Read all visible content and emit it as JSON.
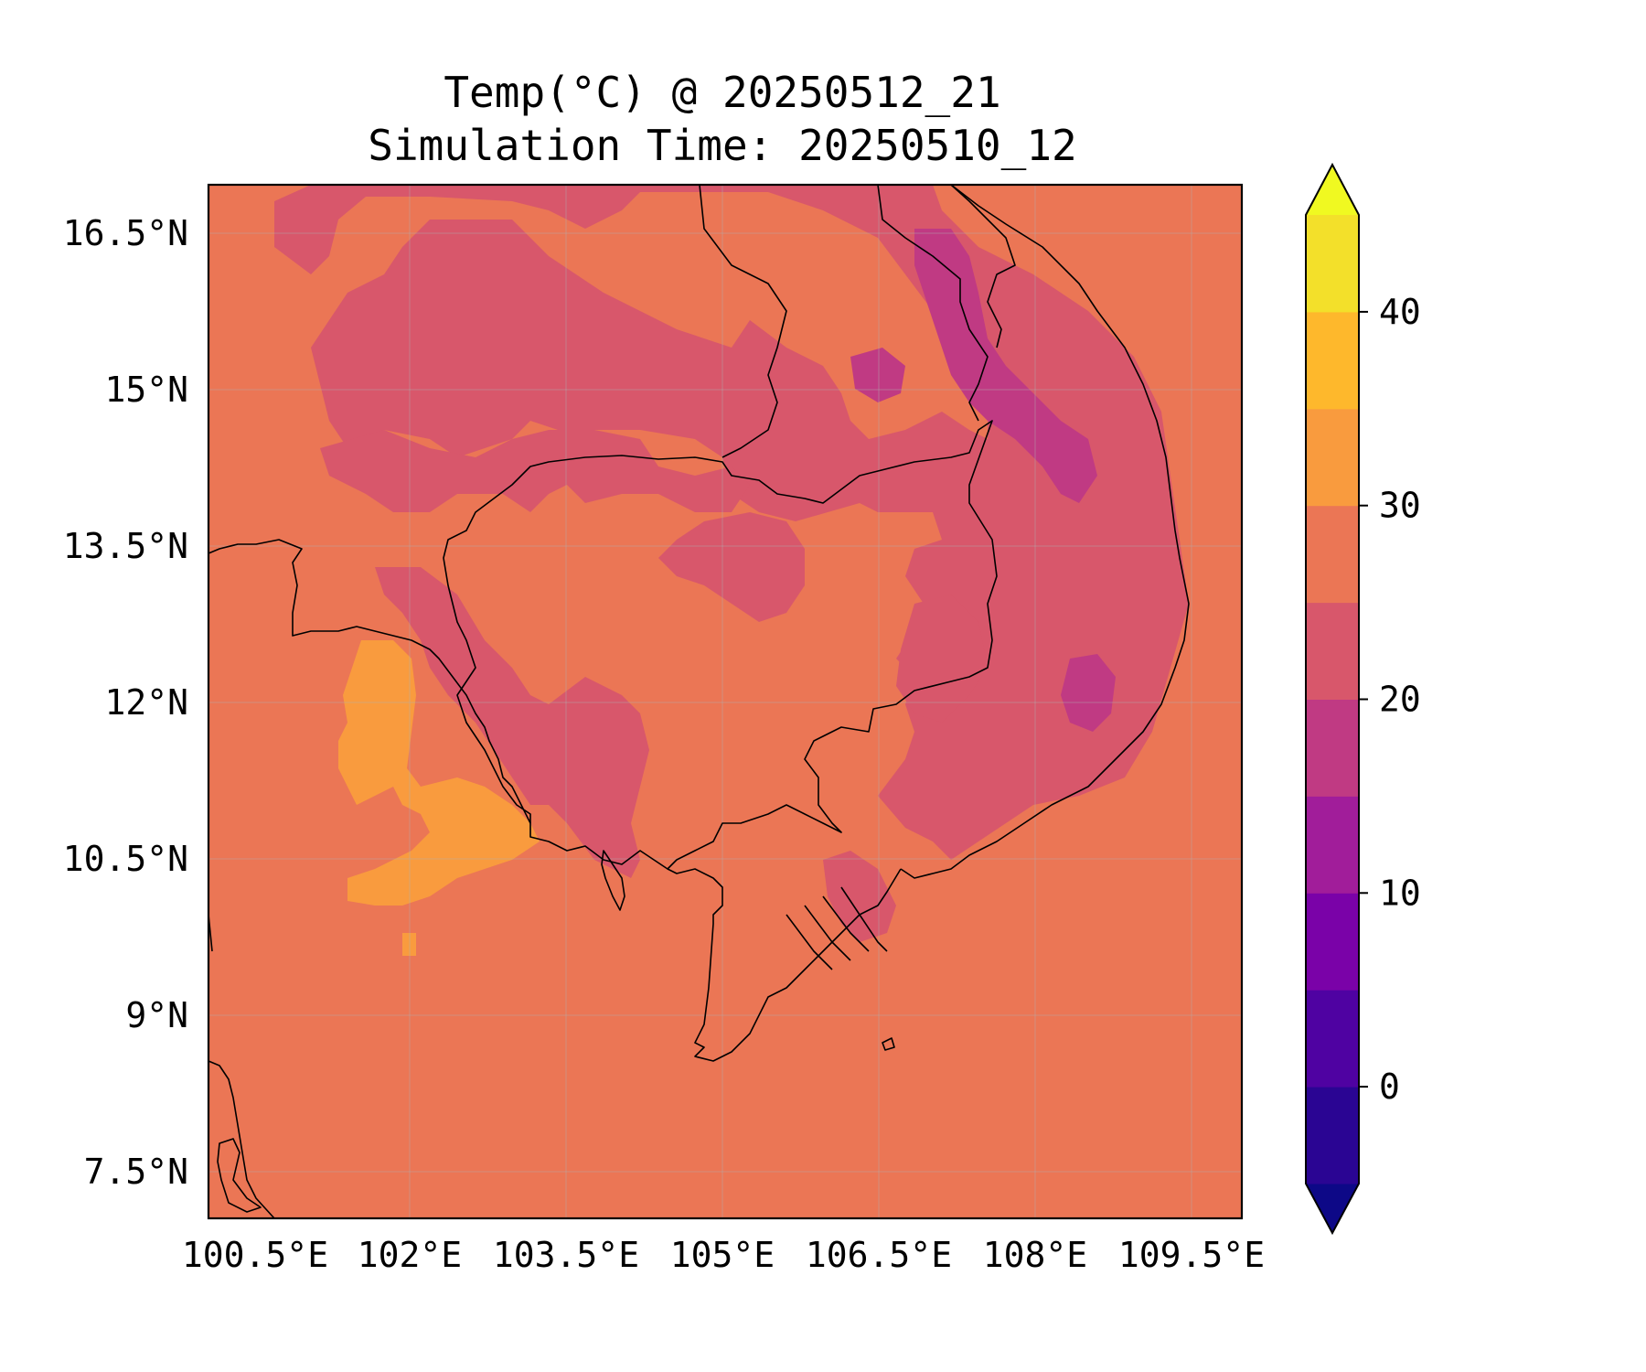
{
  "title": {
    "line1": "Temp(°C) @ 20250512_21",
    "line2": "Simulation Time: 20250510_12"
  },
  "axes": {
    "x_ticks": [
      "100.5°E",
      "102°E",
      "103.5°E",
      "105°E",
      "106.5°E",
      "108°E",
      "109.5°E"
    ],
    "y_ticks": [
      "16.5°N",
      "15°N",
      "13.5°N",
      "12°N",
      "10.5°N",
      "9°N",
      "7.5°N"
    ]
  },
  "colorbar": {
    "ticks": [
      "40",
      "30",
      "20",
      "10",
      "0"
    ],
    "levels": [
      -5,
      0,
      5,
      10,
      15,
      20,
      25,
      30,
      35,
      40,
      45
    ],
    "extend": "both",
    "colormap": "plasma",
    "level_colors": [
      "#2a0593",
      "#4f02a2",
      "#7a02a8",
      "#a11d9a",
      "#c03a83",
      "#d8576b",
      "#eb7655",
      "#f99b3e",
      "#feb82c",
      "#f3e02a"
    ],
    "under_color": "#0d0887",
    "over_color": "#f0f921"
  },
  "map": {
    "background_color": "#eb7655",
    "extent_lon": [
      100.5,
      109.5
    ],
    "extent_lat": [
      7.5,
      16.5
    ]
  }
}
